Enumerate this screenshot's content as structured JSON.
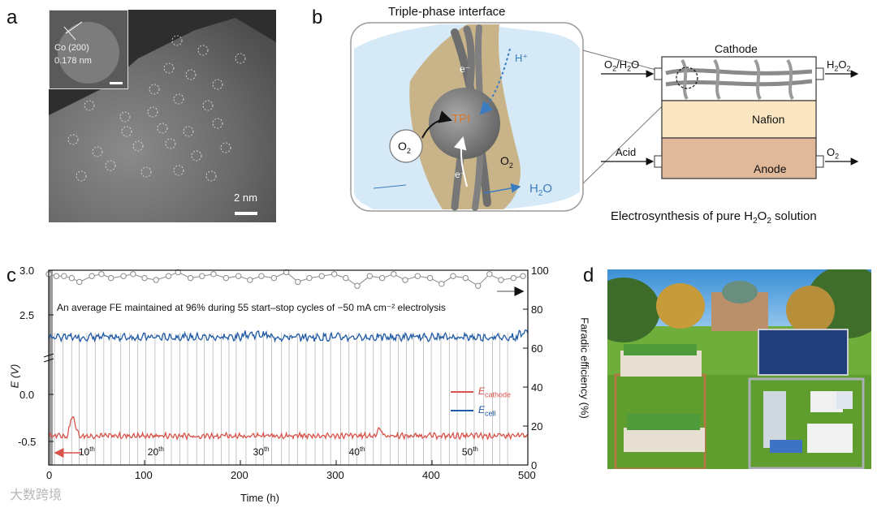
{
  "panel_labels": {
    "a": "a",
    "b": "b",
    "c": "c",
    "d": "d"
  },
  "panel_a": {
    "inset_line1": "Co (200)",
    "inset_line2": "0.178 nm",
    "scalebar": "2 nm"
  },
  "panel_b": {
    "title": "Triple-phase interface",
    "e_top": "e⁻",
    "h_plus": "H⁺",
    "tpi": "TPI",
    "o2_bubble": "O",
    "o2_bubble_sub": "2",
    "o2_right": "O",
    "o2_right_sub": "2",
    "e_bottom": "e⁻",
    "h2o": "H",
    "h2o_sub": "2",
    "h2o_end": "O",
    "cathode": "Cathode",
    "nafion": "Nafion",
    "anode": "Anode",
    "in_top": "O",
    "in_top_sub": "2",
    "in_top_end": "/H",
    "in_top_sub2": "2",
    "in_top_end2": "O",
    "out_top": "H",
    "out_top_sub": "2",
    "out_top_mid": "O",
    "out_top_sub2": "2",
    "in_bottom": "Acid",
    "out_bottom": "O",
    "out_bottom_sub": "2",
    "caption": "Electrosynthesis of pure H",
    "caption_sub": "2",
    "caption_mid": "O",
    "caption_sub2": "2",
    "caption_end": " solution",
    "colors": {
      "water": "#d6e9f7",
      "tan": "#c9b489",
      "cathode": "#ffffff",
      "nafion": "#fbe6c2",
      "anode": "#e0b89a"
    }
  },
  "chart_data": {
    "type": "line",
    "annotation": "An average FE maintained at 96% during 55 start–stop cycles of −50 mA cm⁻² electrolysis",
    "xlabel": "Time (h)",
    "ylabel_left": "E (V)",
    "ylabel_right": "Faradic efficiency (%)",
    "xlim": [
      0,
      500
    ],
    "x_ticks": [
      "0",
      "100",
      "200",
      "300",
      "400",
      "500"
    ],
    "y_left_ticks": [
      "3.0",
      "2.5",
      "0.0",
      "-0.5"
    ],
    "y_right_ticks": [
      "100",
      "80",
      "60",
      "40",
      "20",
      "0"
    ],
    "ylim_right": [
      0,
      100
    ],
    "legend": [
      {
        "label": "E",
        "sub": "cathode",
        "color": "#d9534a"
      },
      {
        "label": "E",
        "sub": "cell",
        "color": "#1f5aa6"
      }
    ],
    "cycle_labels": [
      {
        "base": "10",
        "sup": "th",
        "x": 38
      },
      {
        "base": "20",
        "sup": "th",
        "x": 110
      },
      {
        "base": "30",
        "sup": "th",
        "x": 220
      },
      {
        "base": "40",
        "sup": "th",
        "x": 320
      },
      {
        "base": "50",
        "sup": "th",
        "x": 438
      }
    ],
    "series": [
      {
        "name": "E_cell",
        "color": "#1f5aa6",
        "mean_V": 2.25,
        "range_V": [
          2.12,
          2.33
        ]
      },
      {
        "name": "E_cathode",
        "color": "#d9534a",
        "mean_V": -0.44,
        "range_V": [
          -0.52,
          -0.24
        ]
      }
    ],
    "fe_x": [
      0,
      8,
      16,
      24,
      32,
      45,
      55,
      65,
      78,
      88,
      100,
      112,
      125,
      135,
      148,
      160,
      172,
      185,
      198,
      210,
      222,
      235,
      248,
      260,
      272,
      285,
      298,
      310,
      322,
      335,
      348,
      360,
      372,
      385,
      398,
      410,
      422,
      435,
      448,
      460,
      472,
      485,
      495
    ],
    "fe_values": [
      98,
      97,
      97,
      96,
      94,
      97,
      98,
      96,
      97,
      98,
      96,
      95,
      97,
      99,
      96,
      97,
      98,
      96,
      97,
      95,
      97,
      96,
      99,
      94,
      96,
      97,
      98,
      96,
      92,
      97,
      96,
      98,
      95,
      97,
      96,
      93,
      97,
      96,
      92,
      98,
      95,
      96,
      97
    ]
  },
  "watermark": "大数跨境"
}
